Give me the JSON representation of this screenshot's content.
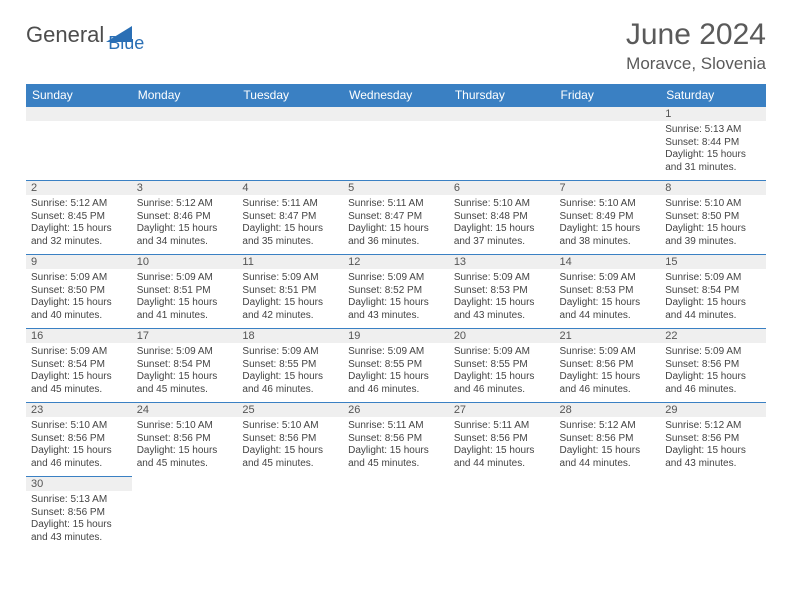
{
  "logo": {
    "text_a": "General",
    "text_b": "Blue"
  },
  "title": {
    "month": "June 2024",
    "location": "Moravce, Slovenia"
  },
  "colors": {
    "header_bg": "#3a80c3",
    "header_fg": "#ffffff",
    "daybar_bg": "#efefef",
    "daybar_border": "#3a80c3",
    "text": "#444444"
  },
  "weekdays": [
    "Sunday",
    "Monday",
    "Tuesday",
    "Wednesday",
    "Thursday",
    "Friday",
    "Saturday"
  ],
  "first_weekday_index": 6,
  "days": [
    {
      "n": 1,
      "sunrise": "5:13 AM",
      "sunset": "8:44 PM",
      "dl_h": 15,
      "dl_m": 31
    },
    {
      "n": 2,
      "sunrise": "5:12 AM",
      "sunset": "8:45 PM",
      "dl_h": 15,
      "dl_m": 32
    },
    {
      "n": 3,
      "sunrise": "5:12 AM",
      "sunset": "8:46 PM",
      "dl_h": 15,
      "dl_m": 34
    },
    {
      "n": 4,
      "sunrise": "5:11 AM",
      "sunset": "8:47 PM",
      "dl_h": 15,
      "dl_m": 35
    },
    {
      "n": 5,
      "sunrise": "5:11 AM",
      "sunset": "8:47 PM",
      "dl_h": 15,
      "dl_m": 36
    },
    {
      "n": 6,
      "sunrise": "5:10 AM",
      "sunset": "8:48 PM",
      "dl_h": 15,
      "dl_m": 37
    },
    {
      "n": 7,
      "sunrise": "5:10 AM",
      "sunset": "8:49 PM",
      "dl_h": 15,
      "dl_m": 38
    },
    {
      "n": 8,
      "sunrise": "5:10 AM",
      "sunset": "8:50 PM",
      "dl_h": 15,
      "dl_m": 39
    },
    {
      "n": 9,
      "sunrise": "5:09 AM",
      "sunset": "8:50 PM",
      "dl_h": 15,
      "dl_m": 40
    },
    {
      "n": 10,
      "sunrise": "5:09 AM",
      "sunset": "8:51 PM",
      "dl_h": 15,
      "dl_m": 41
    },
    {
      "n": 11,
      "sunrise": "5:09 AM",
      "sunset": "8:51 PM",
      "dl_h": 15,
      "dl_m": 42
    },
    {
      "n": 12,
      "sunrise": "5:09 AM",
      "sunset": "8:52 PM",
      "dl_h": 15,
      "dl_m": 43
    },
    {
      "n": 13,
      "sunrise": "5:09 AM",
      "sunset": "8:53 PM",
      "dl_h": 15,
      "dl_m": 43
    },
    {
      "n": 14,
      "sunrise": "5:09 AM",
      "sunset": "8:53 PM",
      "dl_h": 15,
      "dl_m": 44
    },
    {
      "n": 15,
      "sunrise": "5:09 AM",
      "sunset": "8:54 PM",
      "dl_h": 15,
      "dl_m": 44
    },
    {
      "n": 16,
      "sunrise": "5:09 AM",
      "sunset": "8:54 PM",
      "dl_h": 15,
      "dl_m": 45
    },
    {
      "n": 17,
      "sunrise": "5:09 AM",
      "sunset": "8:54 PM",
      "dl_h": 15,
      "dl_m": 45
    },
    {
      "n": 18,
      "sunrise": "5:09 AM",
      "sunset": "8:55 PM",
      "dl_h": 15,
      "dl_m": 46
    },
    {
      "n": 19,
      "sunrise": "5:09 AM",
      "sunset": "8:55 PM",
      "dl_h": 15,
      "dl_m": 46
    },
    {
      "n": 20,
      "sunrise": "5:09 AM",
      "sunset": "8:55 PM",
      "dl_h": 15,
      "dl_m": 46
    },
    {
      "n": 21,
      "sunrise": "5:09 AM",
      "sunset": "8:56 PM",
      "dl_h": 15,
      "dl_m": 46
    },
    {
      "n": 22,
      "sunrise": "5:09 AM",
      "sunset": "8:56 PM",
      "dl_h": 15,
      "dl_m": 46
    },
    {
      "n": 23,
      "sunrise": "5:10 AM",
      "sunset": "8:56 PM",
      "dl_h": 15,
      "dl_m": 46
    },
    {
      "n": 24,
      "sunrise": "5:10 AM",
      "sunset": "8:56 PM",
      "dl_h": 15,
      "dl_m": 45
    },
    {
      "n": 25,
      "sunrise": "5:10 AM",
      "sunset": "8:56 PM",
      "dl_h": 15,
      "dl_m": 45
    },
    {
      "n": 26,
      "sunrise": "5:11 AM",
      "sunset": "8:56 PM",
      "dl_h": 15,
      "dl_m": 45
    },
    {
      "n": 27,
      "sunrise": "5:11 AM",
      "sunset": "8:56 PM",
      "dl_h": 15,
      "dl_m": 44
    },
    {
      "n": 28,
      "sunrise": "5:12 AM",
      "sunset": "8:56 PM",
      "dl_h": 15,
      "dl_m": 44
    },
    {
      "n": 29,
      "sunrise": "5:12 AM",
      "sunset": "8:56 PM",
      "dl_h": 15,
      "dl_m": 43
    },
    {
      "n": 30,
      "sunrise": "5:13 AM",
      "sunset": "8:56 PM",
      "dl_h": 15,
      "dl_m": 43
    }
  ],
  "labels": {
    "sunrise": "Sunrise:",
    "sunset": "Sunset:",
    "daylight_a": "Daylight:",
    "daylight_b": "hours",
    "daylight_c": "and",
    "daylight_d": "minutes."
  }
}
